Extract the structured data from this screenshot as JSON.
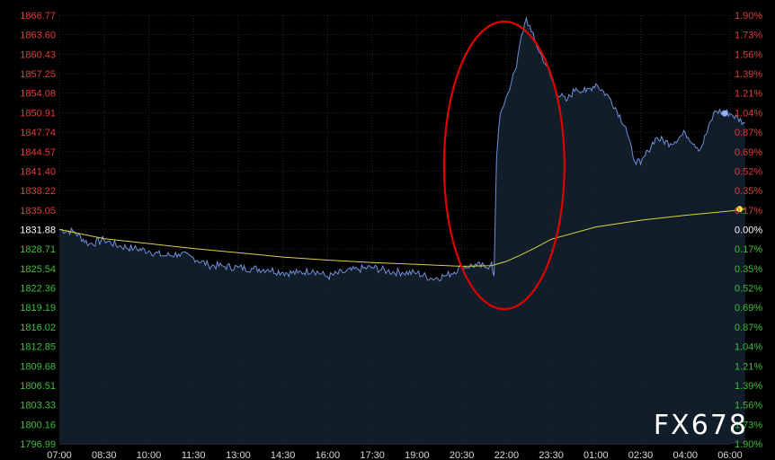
{
  "watermark": "FX678",
  "colors": {
    "background": "#000000",
    "grid": "#1d2a33",
    "price_line": "#6f8fd8",
    "area_fill": "#13202d",
    "ma_line": "#d8d24a",
    "axis_up": "#e23a3a",
    "axis_down": "#3bbf3b",
    "axis_neutral": "#ffffff",
    "highlight": "#e00000"
  },
  "chart_data": {
    "type": "line",
    "x_ticks": [
      "07:00",
      "08:30",
      "10:00",
      "11:30",
      "13:00",
      "14:30",
      "16:00",
      "17:30",
      "19:00",
      "20:30",
      "22:00",
      "23:30",
      "01:00",
      "02:30",
      "04:00",
      "06:00"
    ],
    "y_left_ticks": [
      "1866.77",
      "1863.60",
      "1860.43",
      "1857.25",
      "1854.08",
      "1850.91",
      "1847.74",
      "1844.57",
      "1841.40",
      "1838.22",
      "1835.05",
      "1831.88",
      "1828.71",
      "1825.54",
      "1822.36",
      "1819.19",
      "1816.02",
      "1812.85",
      "1809.68",
      "1806.51",
      "1803.33",
      "1800.16",
      "1796.99"
    ],
    "y_right_ticks": [
      "1.90%",
      "1.73%",
      "1.56%",
      "1.39%",
      "1.21%",
      "1.04%",
      "0.87%",
      "0.69%",
      "0.52%",
      "0.35%",
      "0.17%",
      "0.00%",
      "0.17%",
      "0.35%",
      "0.52%",
      "0.69%",
      "0.87%",
      "1.04%",
      "1.21%",
      "1.39%",
      "1.56%",
      "1.73%",
      "1.90%"
    ],
    "ylim": [
      1796.99,
      1866.77
    ],
    "baseline": 1831.88,
    "grid": true,
    "annotation": "red ellipse around the price spike near 22:00",
    "series": [
      {
        "role": "price",
        "x": [
          "07:00",
          "07:30",
          "08:00",
          "08:30",
          "09:00",
          "09:30",
          "10:00",
          "10:30",
          "11:00",
          "11:30",
          "12:00",
          "12:30",
          "13:00",
          "13:30",
          "14:00",
          "14:30",
          "15:00",
          "15:30",
          "16:00",
          "16:30",
          "17:00",
          "17:30",
          "18:00",
          "18:30",
          "19:00",
          "19:30",
          "20:00",
          "20:30",
          "21:00",
          "21:20",
          "21:30",
          "21:35",
          "21:40",
          "21:45",
          "21:50",
          "22:00",
          "22:10",
          "22:20",
          "22:30",
          "22:40",
          "22:50",
          "23:00",
          "23:20",
          "23:40",
          "00:00",
          "00:20",
          "00:40",
          "01:00",
          "01:30",
          "02:00",
          "02:15",
          "02:30",
          "02:45",
          "03:00",
          "03:30",
          "04:00",
          "04:30",
          "05:00",
          "05:30",
          "06:00"
        ],
        "values": [
          1831.9,
          1831.5,
          1829.5,
          1830.2,
          1829.2,
          1828.8,
          1828.4,
          1827.6,
          1827.9,
          1827.3,
          1826.1,
          1825.9,
          1825.7,
          1825.5,
          1825.4,
          1824.9,
          1824.8,
          1825.3,
          1824.2,
          1824.9,
          1825.4,
          1825.7,
          1825.1,
          1824.9,
          1824.8,
          1823.9,
          1824.4,
          1825.8,
          1826.1,
          1825.7,
          1826.6,
          1824.3,
          1843.5,
          1848.8,
          1851.3,
          1853.6,
          1855.9,
          1858.3,
          1863.4,
          1866.3,
          1864.1,
          1862.0,
          1858.6,
          1854.4,
          1852.8,
          1854.9,
          1854.3,
          1855.6,
          1853.1,
          1848.6,
          1843.6,
          1842.5,
          1844.7,
          1846.8,
          1845.9,
          1847.6,
          1844.9,
          1851.2,
          1850.8,
          1849.2
        ]
      },
      {
        "role": "moving_average",
        "x": [
          "07:00",
          "08:30",
          "10:00",
          "11:30",
          "13:00",
          "14:30",
          "16:00",
          "17:30",
          "19:00",
          "20:30",
          "21:30",
          "22:00",
          "22:30",
          "23:00",
          "23:30",
          "01:00",
          "02:30",
          "04:00",
          "05:30",
          "06:00"
        ],
        "values": [
          1831.9,
          1830.4,
          1829.6,
          1828.8,
          1828.1,
          1827.4,
          1826.9,
          1826.5,
          1826.2,
          1825.9,
          1826.0,
          1826.7,
          1827.8,
          1829.0,
          1830.3,
          1832.3,
          1833.4,
          1834.2,
          1834.9,
          1835.2
        ]
      }
    ]
  }
}
